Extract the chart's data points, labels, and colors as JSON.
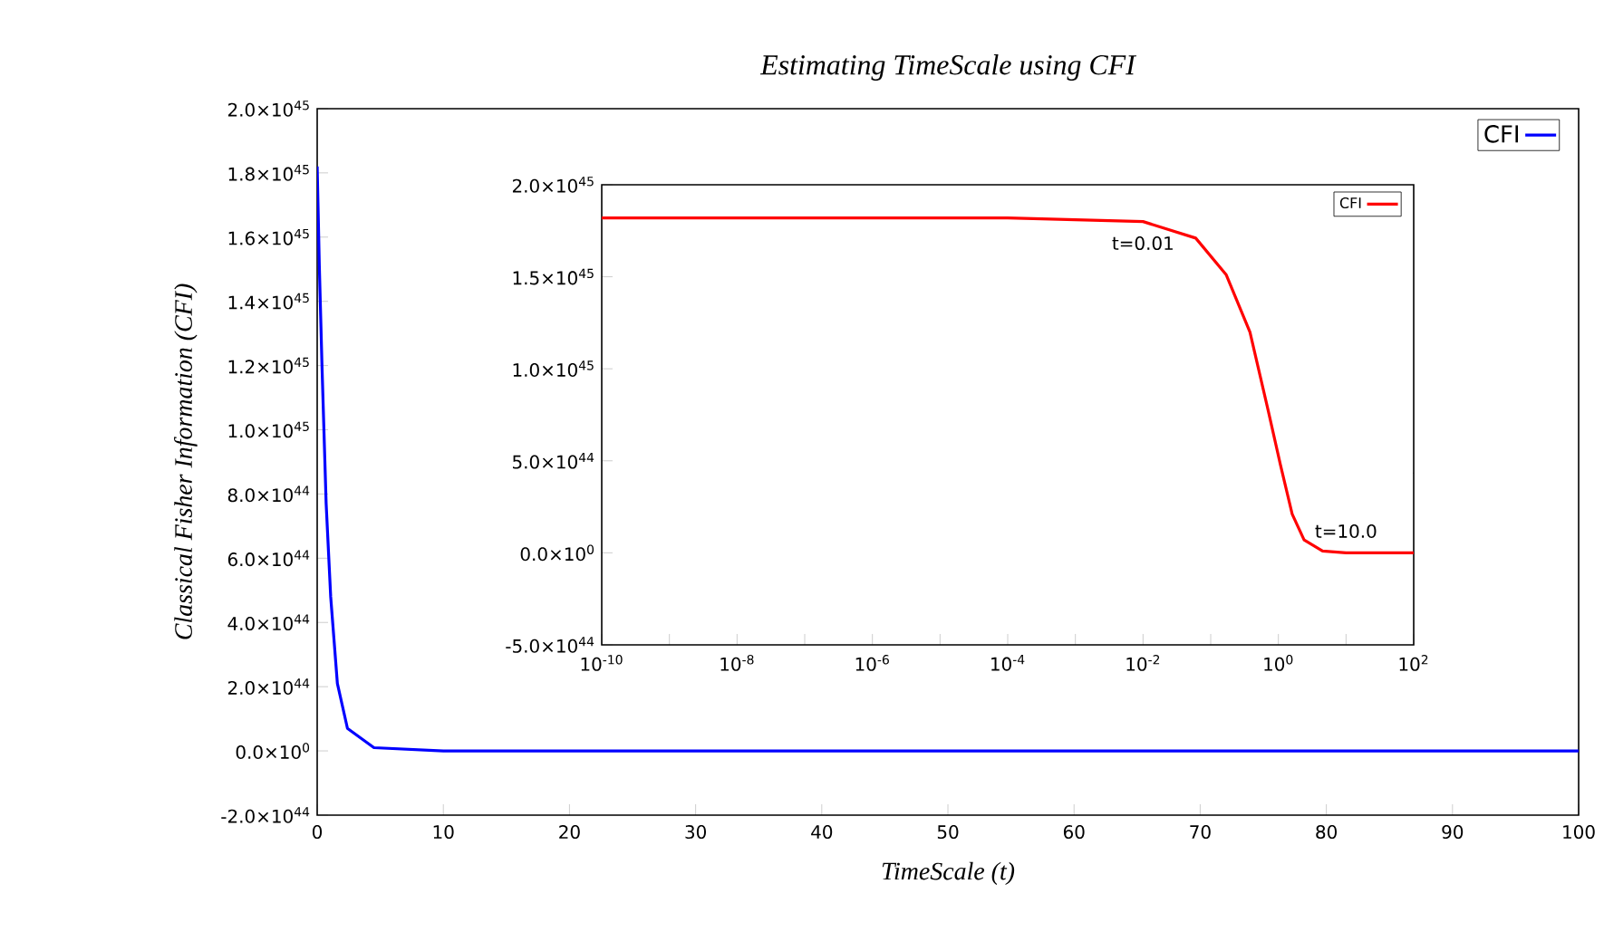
{
  "chart_data": [
    {
      "type": "line",
      "title": "Estimating TimeScale using CFI",
      "xlabel": "TimeScale (t)",
      "ylabel": "Classical Fisher Information (CFI)",
      "series": [
        {
          "name": "CFI",
          "color": "#0000ff",
          "x": [
            0,
            0.06,
            0.17,
            0.38,
            0.71,
            1.07,
            1.6,
            2.4,
            4.5,
            10,
            100
          ],
          "values": [
            1.82e+45,
            1.71e+45,
            1.51e+45,
            1.2e+45,
            7.7e+44,
            4.8e+44,
            2.1e+44,
            7e+43,
            1e+43,
            0,
            0
          ]
        }
      ],
      "xlim": [
        0,
        100
      ],
      "ylim": [
        -2e+44,
        2e+45
      ],
      "xticks": [
        0,
        10,
        20,
        30,
        40,
        50,
        60,
        70,
        80,
        90,
        100
      ],
      "yticks": [
        {
          "value": -2e+44,
          "label": "-2.0×10$^{44}$"
        },
        {
          "value": 0,
          "label": "0.0×10$^{0}$"
        },
        {
          "value": 2e+44,
          "label": "2.0×10$^{44}$"
        },
        {
          "value": 4e+44,
          "label": "4.0×10$^{44}$"
        },
        {
          "value": 6e+44,
          "label": "6.0×10$^{44}$"
        },
        {
          "value": 8e+44,
          "label": "8.0×10$^{44}$"
        },
        {
          "value": 1e+45,
          "label": "1.0×10$^{45}$"
        },
        {
          "value": 1.2e+45,
          "label": "1.2×10$^{45}$"
        },
        {
          "value": 1.4e+45,
          "label": "1.4×10$^{45}$"
        },
        {
          "value": 1.6e+45,
          "label": "1.6×10$^{45}$"
        },
        {
          "value": 1.8e+45,
          "label": "1.8×10$^{45}$"
        },
        {
          "value": 2e+45,
          "label": "2.0×10$^{45}$"
        }
      ],
      "legend": "top right"
    },
    {
      "type": "line",
      "log": "x",
      "series": [
        {
          "name": "CFI",
          "color": "#ff0000",
          "x": [
            1e-10,
            0.0001,
            0.01,
            0.06,
            0.17,
            0.38,
            0.71,
            1.07,
            1.6,
            2.4,
            4.5,
            10,
            100
          ],
          "values": [
            1.82e+45,
            1.82e+45,
            1.8e+45,
            1.71e+45,
            1.51e+45,
            1.2e+45,
            7.7e+44,
            4.8e+44,
            2.1e+44,
            7e+43,
            1e+43,
            0,
            0
          ]
        }
      ],
      "xlim": [
        1e-10,
        100
      ],
      "ylim": [
        -5e+44,
        2e+45
      ],
      "xticks": [
        {
          "value": 1e-10,
          "label": "10$^{-10}$"
        },
        {
          "value": 1e-09,
          "label": null
        },
        {
          "value": 1e-08,
          "label": "10$^{-8}$"
        },
        {
          "value": 1e-07,
          "label": null
        },
        {
          "value": 1e-06,
          "label": "10$^{-6}$"
        },
        {
          "value": 1e-05,
          "label": null
        },
        {
          "value": 0.0001,
          "label": "10$^{-4}$"
        },
        {
          "value": 0.001,
          "label": null
        },
        {
          "value": 0.01,
          "label": "10$^{-2}$"
        },
        {
          "value": 0.1,
          "label": null
        },
        {
          "value": 1,
          "label": "10$^{0}$"
        },
        {
          "value": 10,
          "label": null
        },
        {
          "value": 100,
          "label": "10$^{2}$"
        }
      ],
      "yticks": [
        {
          "value": -5e+44,
          "label": "-5.0×10$^{44}$"
        },
        {
          "value": 0,
          "label": "0.0×10$^{0}$"
        },
        {
          "value": 5e+44,
          "label": "5.0×10$^{44}$"
        },
        {
          "value": 1e+45,
          "label": "1.0×10$^{45}$"
        },
        {
          "value": 1.5e+45,
          "label": "1.5×10$^{45}$"
        },
        {
          "value": 2e+45,
          "label": "2.0×10$^{45}$"
        }
      ],
      "annotations": [
        {
          "text": "t=0.01",
          "x": 0.01,
          "y": 1.8e+45
        },
        {
          "text": "t=10.0",
          "x": 10,
          "y": 0
        }
      ],
      "legend": "top right"
    }
  ]
}
